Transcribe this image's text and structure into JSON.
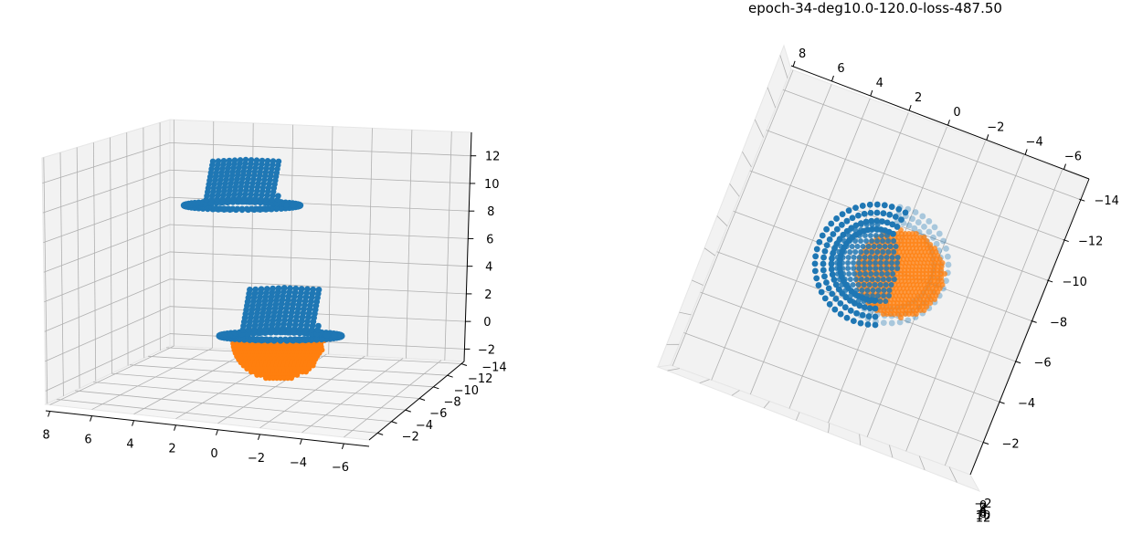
{
  "figure": {
    "title": "epoch-34-deg10.0-120.0-loss-487.50"
  },
  "chart_data": [
    {
      "type": "scatter",
      "projection": "3d",
      "grid": true,
      "x_ticks": [
        "8",
        "6",
        "4",
        "2",
        "0",
        "−2",
        "−4",
        "−6"
      ],
      "y_ticks": [
        "−14",
        "−12",
        "−10",
        "−8",
        "−6",
        "−4",
        "−2"
      ],
      "z_ticks": [
        "12",
        "10",
        "8",
        "6",
        "4",
        "2",
        "0",
        "−2"
      ],
      "series": [
        {
          "color": "#1f77b4",
          "shape": "hat",
          "center": [
            1,
            -8,
            9
          ],
          "note_points": "upper hat point cloud"
        },
        {
          "color": "#1f77b4",
          "shape": "hat",
          "center": [
            1,
            -8,
            1
          ],
          "note_points": "lower hat point cloud"
        },
        {
          "color": "#ff7f0e",
          "shape": "sphere",
          "center": [
            1,
            -8,
            -0.5
          ]
        }
      ]
    },
    {
      "type": "scatter",
      "projection": "3d",
      "grid": true,
      "title": "epoch-34-deg10.0-120.0-loss-487.50",
      "x_ticks": [
        "8",
        "6",
        "4",
        "2",
        "0",
        "−2",
        "−4",
        "−6"
      ],
      "y_ticks": [
        "−14",
        "−12",
        "−10",
        "−8",
        "−6",
        "−4",
        "−2"
      ],
      "z_ticks": [
        "−2",
        "0",
        "2",
        "4",
        "6",
        "8",
        "10",
        "12"
      ],
      "series": [
        {
          "color": "#1f77b4",
          "shape": "hat",
          "center": [
            1,
            -8,
            1
          ]
        },
        {
          "color": "#1f77b4",
          "shape": "hat",
          "center": [
            1,
            -8,
            9
          ]
        },
        {
          "color": "#ff7f0e",
          "shape": "sphere",
          "center": [
            1,
            -8,
            -0.5
          ]
        }
      ]
    }
  ]
}
